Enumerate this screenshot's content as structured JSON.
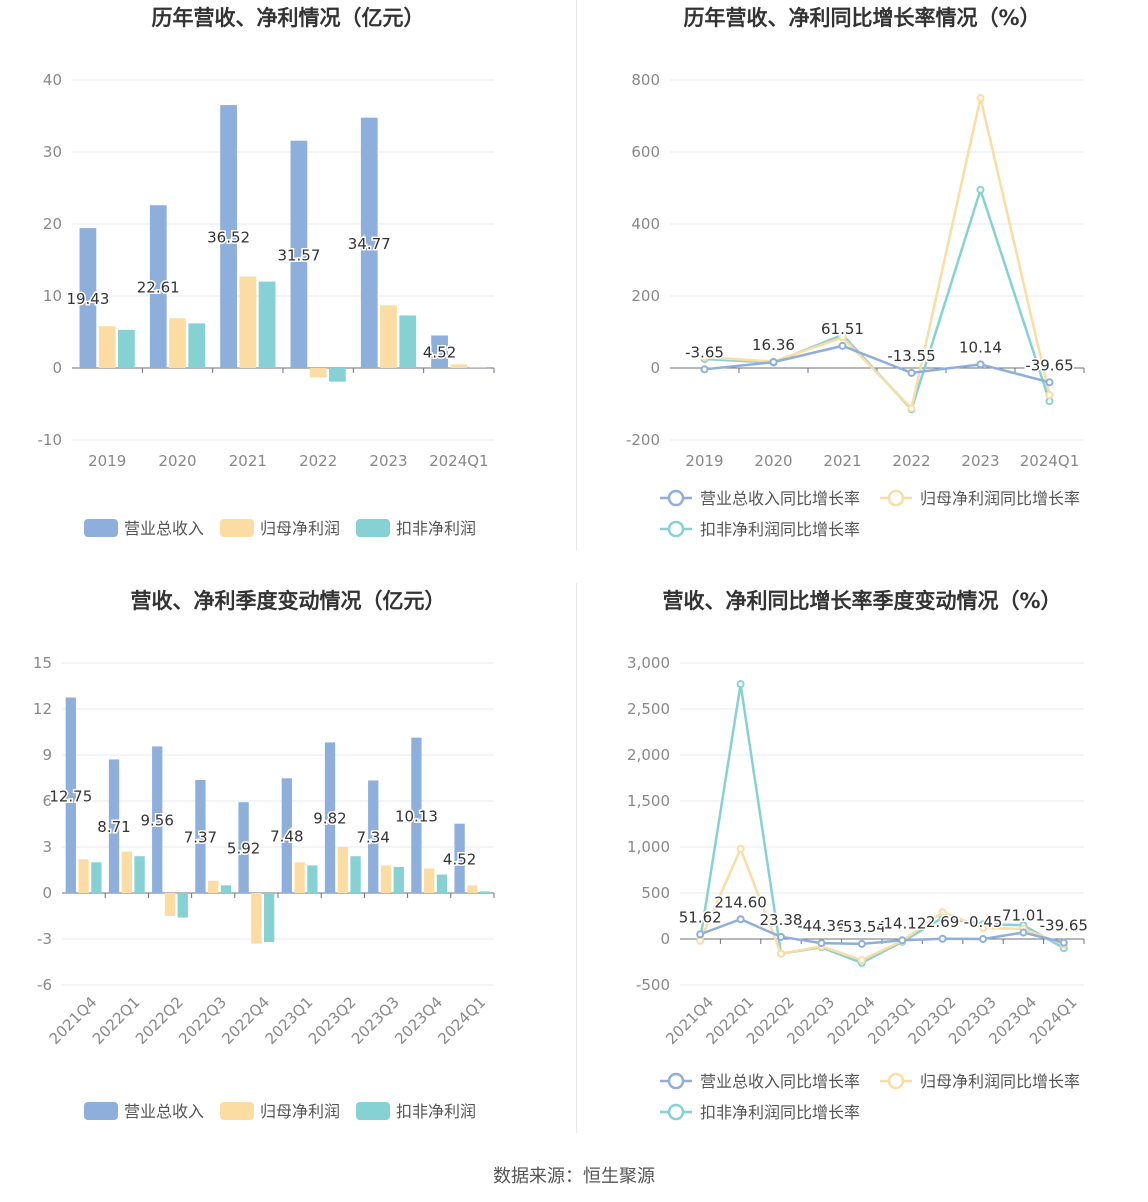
{
  "source_text": "数据来源：恒生聚源",
  "colors": {
    "revenue": "#8eaedc",
    "net_profit": "#fbdca3",
    "deducted_net_profit": "#86d1d4",
    "grid": "#e6e9f0",
    "axis_text": "#888888",
    "label_text": "#333333"
  },
  "legend_labels": {
    "bar": [
      "营业总收入",
      "归母净利润",
      "扣非净利润"
    ],
    "line": [
      "营业总收入同比增长率",
      "归母净利润同比增长率",
      "扣非净利润同比增长率"
    ]
  },
  "chart_data": [
    {
      "id": "annual-bar",
      "type": "bar",
      "title": "历年营收、净利情况（亿元）",
      "categories": [
        "2019",
        "2020",
        "2021",
        "2022",
        "2023",
        "2024Q1"
      ],
      "ylim": [
        -10,
        40
      ],
      "yticks": [
        -10,
        0,
        10,
        20,
        30,
        40
      ],
      "series": [
        {
          "name": "营业总收入",
          "values": [
            19.43,
            22.61,
            36.52,
            31.57,
            34.77,
            4.52
          ],
          "labels": [
            "19.43",
            "22.61",
            "36.52",
            "31.57",
            "34.77",
            "4.52"
          ]
        },
        {
          "name": "归母净利润",
          "values": [
            5.8,
            6.9,
            12.7,
            -1.3,
            8.7,
            0.5
          ]
        },
        {
          "name": "扣非净利润",
          "values": [
            5.3,
            6.2,
            12.0,
            -1.9,
            7.3,
            0.1
          ]
        }
      ],
      "legend": "bottom",
      "grid": true
    },
    {
      "id": "annual-line",
      "type": "line",
      "title": "历年营收、净利同比增长率情况（%）",
      "categories": [
        "2019",
        "2020",
        "2021",
        "2022",
        "2023",
        "2024Q1"
      ],
      "ylim": [
        -200,
        800
      ],
      "yticks": [
        -200,
        0,
        200,
        400,
        600,
        800
      ],
      "series": [
        {
          "name": "营业总收入同比增长率",
          "values": [
            -3.65,
            16.36,
            61.51,
            -13.55,
            10.14,
            -39.65
          ],
          "labels": [
            "-3.65",
            "16.36",
            "61.51",
            "-13.55",
            "10.14",
            "-39.65"
          ]
        },
        {
          "name": "归母净利润同比增长率",
          "values": [
            30,
            18,
            85,
            -112,
            750,
            -75
          ]
        },
        {
          "name": "扣非净利润同比增长率",
          "values": [
            25,
            15,
            92,
            -115,
            495,
            -92
          ]
        }
      ],
      "legend": "bottom",
      "grid": true
    },
    {
      "id": "quarterly-bar",
      "type": "bar",
      "title": "营收、净利季度变动情况（亿元）",
      "categories": [
        "2021Q4",
        "2022Q1",
        "2022Q2",
        "2022Q3",
        "2022Q4",
        "2023Q1",
        "2023Q2",
        "2023Q3",
        "2023Q4",
        "2024Q1"
      ],
      "ylim": [
        -6,
        15
      ],
      "yticks": [
        -6,
        -3,
        0,
        3,
        6,
        9,
        12,
        15
      ],
      "series": [
        {
          "name": "营业总收入",
          "values": [
            12.75,
            8.71,
            9.56,
            7.37,
            5.92,
            7.48,
            9.82,
            7.34,
            10.13,
            4.52
          ],
          "labels": [
            "12.75",
            "8.71",
            "9.56",
            "7.37",
            "5.92",
            "7.48",
            "9.82",
            "7.34",
            "10.13",
            "4.52"
          ]
        },
        {
          "name": "归母净利润",
          "values": [
            2.2,
            2.7,
            -1.5,
            0.8,
            -3.3,
            2.0,
            3.0,
            1.8,
            1.6,
            0.5
          ]
        },
        {
          "name": "扣非净利润",
          "values": [
            2.0,
            2.4,
            -1.6,
            0.5,
            -3.2,
            1.8,
            2.4,
            1.7,
            1.2,
            0.1
          ]
        }
      ],
      "legend": "bottom",
      "grid": true
    },
    {
      "id": "quarterly-line",
      "type": "line",
      "title": "营收、净利同比增长率季度变动情况（%）",
      "categories": [
        "2021Q4",
        "2022Q1",
        "2022Q2",
        "2022Q3",
        "2022Q4",
        "2023Q1",
        "2023Q2",
        "2023Q3",
        "2023Q4",
        "2024Q1"
      ],
      "ylim": [
        -500,
        3000
      ],
      "yticks": [
        -500,
        0,
        500,
        1000,
        1500,
        2000,
        2500,
        3000
      ],
      "ytick_labels": [
        "-500",
        "0",
        "500",
        "1,000",
        "1,500",
        "2,000",
        "2,500",
        "3,000"
      ],
      "series": [
        {
          "name": "营业总收入同比增长率",
          "values": [
            51.62,
            214.6,
            23.38,
            -44.36,
            -53.54,
            -14.12,
            2.69,
            -0.45,
            71.01,
            -39.65
          ],
          "labels": [
            "51.62",
            "214.60",
            "23.38",
            "-44.36",
            "-53.54",
            "-14.12",
            "2.69",
            "-0.45",
            "71.01",
            "-39.65"
          ]
        },
        {
          "name": "归母净利润同比增长率",
          "values": [
            -20,
            980,
            -160,
            -80,
            -230,
            -20,
            290,
            120,
            110,
            -60
          ]
        },
        {
          "name": "扣非净利润同比增长率",
          "values": [
            -10,
            2770,
            -160,
            -90,
            -260,
            -30,
            230,
            160,
            150,
            -100
          ]
        }
      ],
      "legend": "bottom",
      "grid": true
    }
  ]
}
